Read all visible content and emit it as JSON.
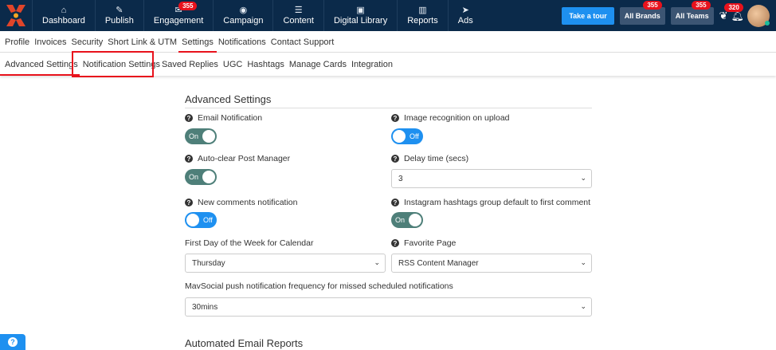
{
  "nav": {
    "items": [
      {
        "label": "Dashboard",
        "icon": "home-icon",
        "glyph": "⌂"
      },
      {
        "label": "Publish",
        "icon": "edit-icon",
        "glyph": "✎"
      },
      {
        "label": "Engagement",
        "icon": "inbox-icon",
        "glyph": "✉",
        "badge": "355"
      },
      {
        "label": "Campaign",
        "icon": "target-icon",
        "glyph": "◉"
      },
      {
        "label": "Content",
        "icon": "list-icon",
        "glyph": "☰"
      },
      {
        "label": "Digital Library",
        "icon": "briefcase-icon",
        "glyph": "▣"
      },
      {
        "label": "Reports",
        "icon": "bar-chart-icon",
        "glyph": "▥"
      },
      {
        "label": "Ads",
        "icon": "paper-plane-icon",
        "glyph": "➤"
      }
    ],
    "tour": "Take a tour",
    "brands": "All Brands",
    "brands_badge": "355",
    "teams": "All Teams",
    "teams_badge": "355",
    "bell_badge": "320"
  },
  "tabs": [
    "Profile",
    "Invoices",
    "Security",
    "Short Link & UTM",
    "Settings",
    "Notifications",
    "Contact Support"
  ],
  "subtabs": [
    "Advanced Settings",
    "Notification Settings",
    "Saved Replies",
    "UGC",
    "Hashtags",
    "Manage Cards",
    "Integration"
  ],
  "section": {
    "title": "Advanced Settings",
    "email": {
      "label": "Email Notification",
      "state": "On"
    },
    "image": {
      "label": "Image recognition on upload",
      "state": "Off"
    },
    "autoclear": {
      "label": "Auto-clear Post Manager",
      "state": "On"
    },
    "delay": {
      "label": "Delay time (secs)",
      "value": "3"
    },
    "comments": {
      "label": "New comments notification",
      "state": "Off"
    },
    "instagram": {
      "label": "Instagram hashtags group default to first comment",
      "state": "On"
    },
    "firstday": {
      "label": "First Day of the Week for Calendar",
      "value": "Thursday"
    },
    "favorite": {
      "label": "Favorite Page",
      "value": "RSS Content Manager"
    },
    "push": {
      "label": "MavSocial push notification frequency for missed scheduled notifications",
      "value": "30mins"
    }
  },
  "section2": {
    "title": "Automated Email Reports"
  },
  "colors": {
    "nav": "#0b2a4a",
    "accent": "#e8121c",
    "toggle_on": "#4e7f79",
    "toggle_off": "#1e90f0"
  }
}
